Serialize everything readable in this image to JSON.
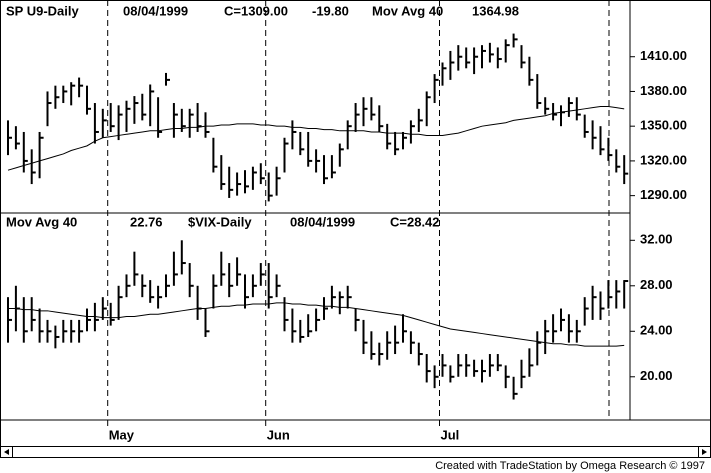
{
  "chart_data": [
    {
      "type": "ohlc",
      "header": [
        "SP U9-Daily",
        "08/04/1999",
        "C=1309.00",
        "-19.80",
        "Mov Avg 40",
        "1364.98"
      ],
      "ylim": [
        1275,
        1459
      ],
      "yticks": [
        {
          "value": 1290,
          "label": "1290.00"
        },
        {
          "value": 1320,
          "label": "1320.00"
        },
        {
          "value": 1350,
          "label": "1350.00"
        },
        {
          "value": 1380,
          "label": "1380.00"
        },
        {
          "value": 1410,
          "label": "1410.00"
        }
      ],
      "series": [
        {
          "color": "#000000",
          "high": [
            1355,
            1350,
            1345,
            1330,
            1345,
            1380,
            1385,
            1385,
            1388,
            1392,
            1385,
            1370,
            1365,
            1370,
            1368,
            1372,
            1376,
            1378,
            1386,
            1375,
            1396,
            1370,
            1365,
            1365,
            1370,
            1362,
            1340,
            1325,
            1315,
            1310,
            1312,
            1315,
            1318,
            1310,
            1315,
            1340,
            1355,
            1345,
            1345,
            1330,
            1325,
            1325,
            1335,
            1355,
            1370,
            1375,
            1375,
            1368,
            1352,
            1345,
            1345,
            1355,
            1365,
            1380,
            1395,
            1405,
            1415,
            1420,
            1418,
            1418,
            1420,
            1422,
            1418,
            1425,
            1430,
            1420,
            1410,
            1395,
            1375,
            1370,
            1368,
            1375,
            1375,
            1360,
            1355,
            1350,
            1340,
            1330,
            1325
          ],
          "low": [
            1325,
            1330,
            1310,
            1300,
            1305,
            1350,
            1365,
            1370,
            1368,
            1375,
            1360,
            1335,
            1340,
            1345,
            1338,
            1345,
            1352,
            1355,
            1350,
            1340,
            1385,
            1340,
            1345,
            1340,
            1345,
            1340,
            1310,
            1295,
            1288,
            1290,
            1292,
            1295,
            1300,
            1285,
            1290,
            1310,
            1330,
            1325,
            1315,
            1310,
            1300,
            1305,
            1315,
            1330,
            1345,
            1350,
            1355,
            1345,
            1330,
            1325,
            1330,
            1335,
            1345,
            1350,
            1370,
            1385,
            1390,
            1398,
            1400,
            1395,
            1400,
            1405,
            1400,
            1405,
            1418,
            1400,
            1385,
            1365,
            1360,
            1355,
            1350,
            1358,
            1355,
            1340,
            1330,
            1325,
            1320,
            1310,
            1300
          ],
          "close": [
            1340,
            1335,
            1320,
            1310,
            1340,
            1370,
            1375,
            1380,
            1385,
            1385,
            1365,
            1345,
            1355,
            1350,
            1360,
            1365,
            1370,
            1360,
            1380,
            1345,
            1390,
            1360,
            1350,
            1360,
            1350,
            1345,
            1315,
            1300,
            1295,
            1300,
            1298,
            1310,
            1305,
            1290,
            1305,
            1335,
            1345,
            1330,
            1320,
            1320,
            1305,
            1310,
            1330,
            1350,
            1360,
            1365,
            1360,
            1350,
            1335,
            1330,
            1340,
            1350,
            1355,
            1375,
            1390,
            1400,
            1405,
            1410,
            1405,
            1410,
            1415,
            1412,
            1408,
            1420,
            1425,
            1405,
            1390,
            1370,
            1365,
            1360,
            1362,
            1370,
            1360,
            1345,
            1340,
            1330,
            1325,
            1315,
            1309
          ]
        },
        {
          "type": "line",
          "color": "#000000",
          "values": [
            1312,
            1314,
            1316,
            1318,
            1320,
            1322,
            1324,
            1326,
            1329,
            1331,
            1333,
            1337,
            1340,
            1341,
            1342,
            1343,
            1344,
            1345,
            1346,
            1346,
            1347,
            1348,
            1348,
            1349,
            1349,
            1350,
            1350,
            1351,
            1351,
            1352,
            1352,
            1352,
            1351,
            1351,
            1350,
            1350,
            1349,
            1349,
            1348,
            1348,
            1347,
            1347,
            1346,
            1346,
            1346,
            1346,
            1345,
            1345,
            1344,
            1344,
            1344,
            1343,
            1343,
            1342,
            1342,
            1342,
            1343,
            1344,
            1346,
            1348,
            1350,
            1351,
            1352,
            1353,
            1355,
            1356,
            1357,
            1358,
            1359,
            1361,
            1362,
            1363,
            1364,
            1365,
            1366,
            1367,
            1367,
            1366,
            1364.98
          ]
        }
      ]
    },
    {
      "type": "ohlc",
      "header": [
        "Mov Avg 40",
        "22.76",
        "$VIX-Daily",
        "08/04/1999",
        "C=28.42"
      ],
      "ylim": [
        16.2,
        34.4
      ],
      "yticks": [
        {
          "value": 20,
          "label": "20.00"
        },
        {
          "value": 24,
          "label": "24.00"
        },
        {
          "value": 28,
          "label": "28.00"
        },
        {
          "value": 32,
          "label": "32.00"
        }
      ],
      "categories": [
        null,
        null,
        null,
        null,
        null,
        null,
        null,
        null,
        null,
        null,
        null,
        null,
        null,
        "May",
        null,
        null,
        null,
        null,
        null,
        null,
        null,
        null,
        null,
        null,
        null,
        null,
        null,
        null,
        null,
        null,
        null,
        null,
        null,
        "Jun",
        null,
        null,
        null,
        null,
        null,
        null,
        null,
        null,
        null,
        null,
        null,
        null,
        null,
        null,
        null,
        null,
        null,
        null,
        null,
        null,
        null,
        "Jul",
        null,
        null,
        null,
        null,
        null,
        null,
        null,
        null,
        null,
        null,
        null,
        null,
        null,
        null,
        null,
        null,
        null,
        null,
        null,
        null,
        null,
        null,
        null
      ],
      "series": [
        {
          "color": "#000000",
          "high": [
            27,
            28,
            27,
            27,
            26,
            25,
            24.5,
            25,
            25,
            25,
            26,
            26.5,
            27,
            26.5,
            28,
            29,
            31,
            29,
            28.5,
            28,
            29,
            31,
            32,
            30,
            28,
            26,
            29,
            31,
            30,
            30.5,
            29,
            29,
            30,
            30,
            29,
            27,
            26,
            25,
            25.5,
            26,
            27,
            28,
            27.5,
            28,
            26,
            25,
            24,
            23,
            24,
            24.5,
            25.5,
            24,
            23,
            22,
            21,
            22,
            21,
            22,
            22,
            21.5,
            21.5,
            22,
            22,
            21,
            20,
            21.5,
            22.5,
            24,
            25,
            25.5,
            26,
            25.5,
            25,
            27,
            28,
            27.5,
            28.5,
            28.5,
            28.5
          ],
          "low": [
            23,
            24,
            23,
            24,
            23,
            23,
            22.5,
            23,
            23,
            23,
            24,
            24,
            25,
            24.5,
            25,
            27,
            28,
            27,
            26.5,
            26,
            27,
            28,
            29,
            27,
            25,
            23.5,
            26,
            28,
            27,
            28,
            26,
            27,
            28,
            26,
            27,
            24,
            23,
            23,
            23.5,
            24,
            25,
            26,
            25.5,
            26,
            24,
            22,
            21.5,
            21,
            21.5,
            22,
            23,
            22,
            21,
            19.5,
            19,
            20,
            19.5,
            20,
            20,
            20,
            19.5,
            20,
            20.5,
            19,
            18,
            19,
            20,
            21,
            22,
            23,
            24,
            23,
            23,
            24.5,
            25,
            25,
            26,
            26,
            26
          ],
          "close": [
            25,
            26,
            24,
            25,
            24,
            24,
            23.5,
            24,
            24,
            24,
            25,
            25,
            26,
            25,
            27,
            28,
            29,
            28,
            27,
            27,
            28,
            29,
            30,
            28,
            26,
            24,
            28,
            29,
            28,
            29,
            27,
            28,
            29,
            27,
            28,
            25,
            24,
            23.5,
            24,
            25,
            26,
            27,
            27,
            27,
            25,
            23,
            22,
            22,
            23,
            23,
            24,
            23,
            22,
            20.5,
            20,
            21,
            20,
            21,
            21,
            20.5,
            20.5,
            21,
            21,
            20,
            18.5,
            20,
            21,
            23,
            24,
            24,
            25,
            24,
            24,
            26,
            27,
            26,
            27,
            27.5,
            28.42
          ]
        },
        {
          "type": "line",
          "color": "#000000",
          "values": [
            26,
            26,
            25.9,
            25.9,
            25.8,
            25.8,
            25.7,
            25.6,
            25.5,
            25.4,
            25.3,
            25.3,
            25.2,
            25.2,
            25.2,
            25.3,
            25.3,
            25.4,
            25.5,
            25.5,
            25.6,
            25.7,
            25.8,
            25.9,
            26,
            26,
            26.1,
            26.2,
            26.2,
            26.3,
            26.3,
            26.4,
            26.4,
            26.4,
            26.5,
            26.5,
            26.4,
            26.4,
            26.3,
            26.3,
            26.2,
            26.2,
            26.1,
            26.1,
            26,
            25.9,
            25.8,
            25.7,
            25.6,
            25.5,
            25.4,
            25.2,
            25,
            24.8,
            24.6,
            24.4,
            24.2,
            24.1,
            24,
            23.9,
            23.8,
            23.7,
            23.6,
            23.5,
            23.4,
            23.3,
            23.2,
            23.1,
            23,
            22.9,
            22.9,
            22.8,
            22.8,
            22.7,
            22.7,
            22.7,
            22.7,
            22.7,
            22.76
          ]
        }
      ]
    }
  ],
  "footer": "Created with TradeStation by Omega Research © 1997"
}
